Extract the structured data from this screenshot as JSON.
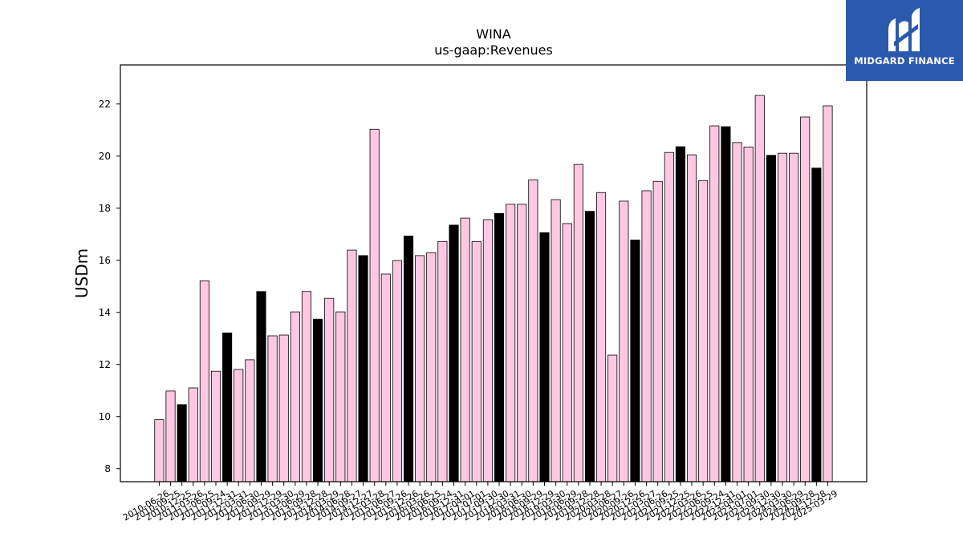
{
  "brand": {
    "name": "MIDGARD FINANCE",
    "bg_color": "#2b5aad"
  },
  "chart_data": {
    "type": "bar",
    "title": "WINA",
    "subtitle": "us-gaap:Revenues",
    "ylabel": "USDm",
    "xlabel": "",
    "ylim": [
      7.5,
      23.5
    ],
    "yticks": [
      8,
      10,
      12,
      14,
      16,
      18,
      20,
      22
    ],
    "colors": {
      "default": "#ffc8e2",
      "highlight": "#000000",
      "edge": "#000000"
    },
    "categories": [
      "2010-06-26",
      "2010-09-25",
      "2010-12-25",
      "2011-03-26",
      "2011-06-25",
      "2011-09-24",
      "2011-12-31",
      "2012-03-31",
      "2012-06-30",
      "2012-09-29",
      "2012-12-29",
      "2013-03-30",
      "2013-06-29",
      "2013-09-28",
      "2013-12-28",
      "2014-03-29",
      "2014-06-28",
      "2014-09-27",
      "2014-12-27",
      "2015-03-28",
      "2015-06-27",
      "2015-09-26",
      "2015-12-26",
      "2016-03-26",
      "2016-06-25",
      "2016-09-24",
      "2016-12-31",
      "2017-04-01",
      "2017-07-01",
      "2017-09-30",
      "2017-12-30",
      "2018-03-31",
      "2018-06-30",
      "2018-09-29",
      "2018-12-29",
      "2019-03-30",
      "2019-06-29",
      "2019-09-28",
      "2019-12-28",
      "2020-03-28",
      "2020-06-27",
      "2020-09-26",
      "2020-12-26",
      "2021-03-27",
      "2021-06-26",
      "2021-09-25",
      "2021-12-25",
      "2022-03-26",
      "2022-06-25",
      "2022-09-24",
      "2022-12-31",
      "2023-04-01",
      "2023-07-01",
      "2023-09-30",
      "2023-12-30",
      "2024-03-30",
      "2024-06-29",
      "2024-09-28",
      "2024-12-28",
      "2025-03-29"
    ],
    "values": [
      9.88,
      10.98,
      10.46,
      11.1,
      15.21,
      11.74,
      13.21,
      11.81,
      12.18,
      14.8,
      13.1,
      13.13,
      14.02,
      14.8,
      13.74,
      14.54,
      14.02,
      16.39,
      16.18,
      21.03,
      15.47,
      15.99,
      16.93,
      16.18,
      16.29,
      16.72,
      17.35,
      17.62,
      16.72,
      17.56,
      17.8,
      18.15,
      18.15,
      19.09,
      17.06,
      18.33,
      17.41,
      19.68,
      17.88,
      18.6,
      12.36,
      18.27,
      16.78,
      18.67,
      19.03,
      20.14,
      20.36,
      20.05,
      19.06,
      21.16,
      21.13,
      20.52,
      20.35,
      22.33,
      20.03,
      20.11,
      20.11,
      21.5,
      19.54,
      21.93
    ],
    "highlighted": [
      2,
      6,
      9,
      14,
      18,
      22,
      26,
      30,
      34,
      38,
      42,
      46,
      50,
      54,
      58
    ],
    "grid": false,
    "legend": false
  }
}
